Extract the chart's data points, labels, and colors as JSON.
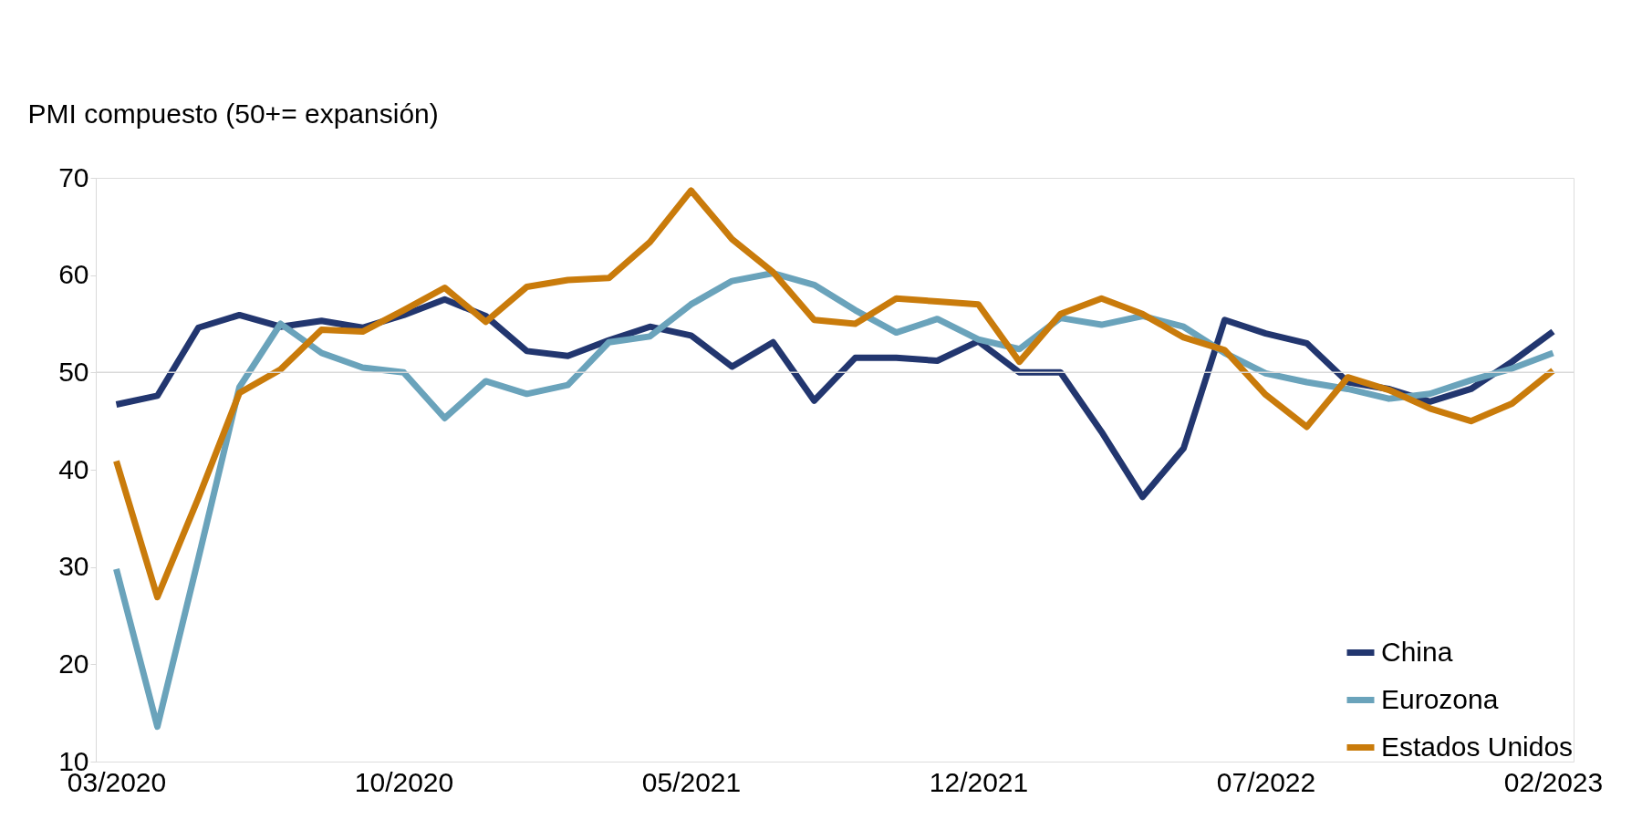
{
  "chart_data": {
    "type": "line",
    "ylabel": "PMI compuesto (50+= expansión)",
    "categories": [
      "03/2020",
      null,
      null,
      null,
      null,
      null,
      null,
      "10/2020",
      null,
      null,
      null,
      null,
      null,
      null,
      "05/2021",
      null,
      null,
      null,
      null,
      null,
      null,
      "12/2021",
      null,
      null,
      null,
      null,
      null,
      null,
      "07/2022",
      null,
      null,
      null,
      null,
      null,
      null,
      "02/2023"
    ],
    "series": [
      {
        "name": "China",
        "color": "#22366f",
        "values": [
          46.7,
          47.6,
          54.6,
          55.9,
          54.7,
          55.3,
          54.6,
          55.9,
          57.5,
          55.8,
          52.2,
          51.7,
          53.3,
          54.7,
          53.8,
          50.6,
          53.1,
          47.1,
          51.5,
          51.5,
          51.2,
          53.2,
          50.0,
          50.0,
          43.9,
          37.2,
          42.2,
          55.4,
          54.0,
          53.0,
          49.0,
          48.3,
          47.0,
          48.3,
          51.1,
          54.2
        ]
      },
      {
        "name": "Eurozona",
        "color": "#6aa3bb",
        "values": [
          29.8,
          13.6,
          30.9,
          48.5,
          55.0,
          52.0,
          50.5,
          50.0,
          45.3,
          49.1,
          47.8,
          48.7,
          53.1,
          53.7,
          57.0,
          59.4,
          60.2,
          59.0,
          56.4,
          54.1,
          55.5,
          53.4,
          52.4,
          55.6,
          54.9,
          55.8,
          54.7,
          52.0,
          49.9,
          49.0,
          48.3,
          47.3,
          47.8,
          49.2,
          50.4,
          52.0
        ]
      },
      {
        "name": "Estados Unidos",
        "color": "#c97b0b",
        "values": [
          40.9,
          26.9,
          37.1,
          47.9,
          50.3,
          54.4,
          54.2,
          56.4,
          58.7,
          55.2,
          58.8,
          59.5,
          59.7,
          63.4,
          68.7,
          63.7,
          60.3,
          55.4,
          55.0,
          57.6,
          57.3,
          57.0,
          51.1,
          56.0,
          57.6,
          56.0,
          53.6,
          52.3,
          47.7,
          44.4,
          49.5,
          48.2,
          46.3,
          45.0,
          46.8,
          50.2
        ]
      }
    ],
    "ylim": [
      10,
      70
    ],
    "yticks": [
      10,
      20,
      30,
      40,
      50,
      60,
      70
    ],
    "ref_lines": [
      {
        "axis": "y",
        "value": 50,
        "color": "#d9d9d9"
      }
    ],
    "grid": false,
    "legend": "bottom right",
    "marker": "none",
    "line_style": "solid"
  }
}
